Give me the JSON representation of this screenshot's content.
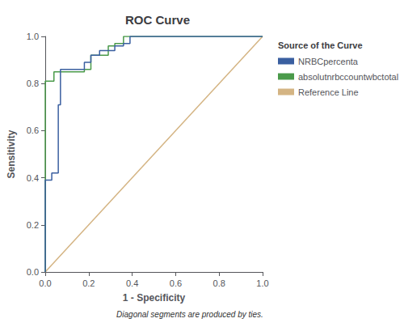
{
  "chart_data": {
    "type": "line",
    "title": "ROC Curve",
    "xlabel": "1 - Specificity",
    "ylabel": "Sensitivity",
    "annotations": [
      "Diagonal segments are produced by ties."
    ],
    "legend_title": "Source of the Curve",
    "legend": "right",
    "grid": false,
    "xlim": [
      0.0,
      1.0
    ],
    "ylim": [
      0.0,
      1.0
    ],
    "xticks": [
      {
        "value": 0.0,
        "label": "0.0"
      },
      0.2,
      0.4,
      0.6,
      0.8,
      {
        "value": 1.0,
        "label": "1.0"
      }
    ],
    "yticks": [
      {
        "value": 0.0,
        "label": "0.0"
      },
      0.2,
      0.4,
      0.6,
      0.8,
      {
        "value": 1.0,
        "label": "1.0"
      }
    ],
    "series": [
      {
        "name": "NRBCpercenta",
        "color": "#3a5fa0",
        "x": [
          0.0,
          0.0,
          0.03,
          0.03,
          0.06,
          0.06,
          0.07,
          0.07,
          0.18,
          0.18,
          0.21,
          0.21,
          0.25,
          0.25,
          0.32,
          0.32,
          0.36,
          0.36,
          0.39,
          0.39,
          0.68,
          0.68,
          1.0
        ],
        "values": [
          0.0,
          0.39,
          0.39,
          0.42,
          0.42,
          0.71,
          0.71,
          0.86,
          0.86,
          0.89,
          0.89,
          0.92,
          0.92,
          0.94,
          0.94,
          0.96,
          0.96,
          0.97,
          0.97,
          1.0,
          1.0,
          1.0,
          1.0
        ]
      },
      {
        "name": "absolutnrbccountwbctotal",
        "color": "#4a9a4a",
        "x": [
          0.0,
          0.0,
          0.0,
          0.04,
          0.04,
          0.07,
          0.07,
          0.18,
          0.18,
          0.21,
          0.21,
          0.29,
          0.29,
          0.32,
          0.32,
          0.36,
          0.36,
          0.68,
          0.68,
          1.0
        ],
        "values": [
          0.0,
          0.7,
          0.81,
          0.81,
          0.85,
          0.85,
          0.85,
          0.85,
          0.86,
          0.86,
          0.92,
          0.92,
          0.96,
          0.96,
          0.97,
          0.97,
          1.0,
          1.0,
          1.0,
          1.0
        ]
      },
      {
        "name": "Reference Line",
        "color": "#d4b483",
        "x": [
          0,
          1
        ],
        "values": [
          0,
          1
        ]
      }
    ]
  }
}
